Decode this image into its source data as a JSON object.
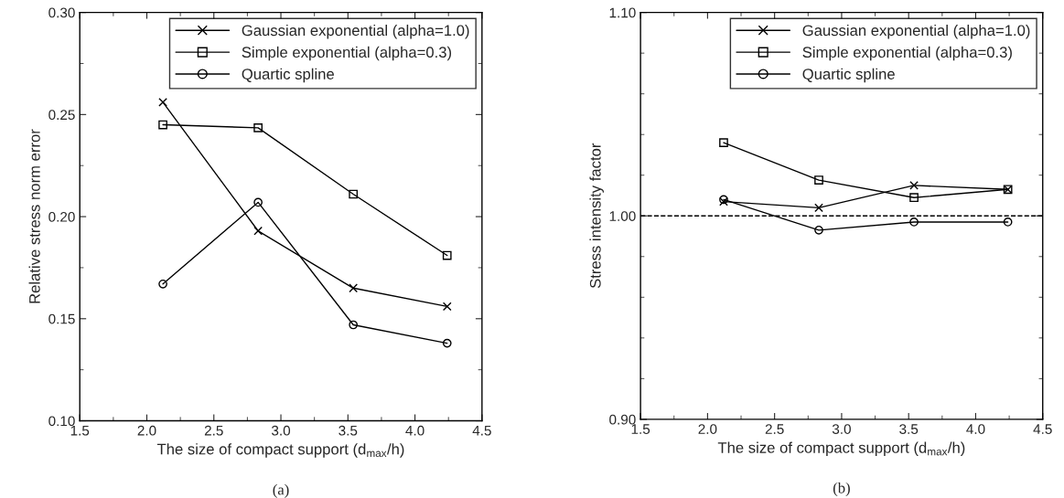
{
  "chart_data": [
    {
      "type": "line",
      "x": [
        2.12,
        2.83,
        3.54,
        4.24
      ],
      "xlabel": "The size of compact support (d$_{max}$/h)",
      "ylabel": "Relative stress norm error",
      "xlim": [
        1.5,
        4.5
      ],
      "xticks": [
        1.5,
        {
          "value": 2,
          "label": "2.0"
        },
        2.5,
        {
          "value": 3,
          "label": "3.0"
        },
        3.5,
        {
          "value": 4,
          "label": "4.0"
        },
        4.5
      ],
      "ylim": [
        0.1,
        0.3
      ],
      "yticks": [
        {
          "value": 0.1,
          "label": "0.10"
        },
        {
          "value": 0.15,
          "label": "0.15"
        },
        {
          "value": 0.2,
          "label": "0.20"
        },
        {
          "value": 0.25,
          "label": "0.25"
        },
        {
          "value": 0.3,
          "label": "0.30"
        }
      ],
      "legend": "top right",
      "grid": false,
      "annotations": [
        "(a)"
      ],
      "series": [
        {
          "name": "Gaussian exponential (alpha=1.0)",
          "color": "#000000",
          "marker": "cross",
          "values": [
            0.256,
            0.193,
            0.165,
            0.156
          ]
        },
        {
          "name": "Simple exponential (alpha=0.3)",
          "color": "#000000",
          "marker": "square",
          "values": [
            0.245,
            0.2435,
            0.211,
            0.181
          ]
        },
        {
          "name": "Quartic spline",
          "color": "#000000",
          "marker": "circle",
          "values": [
            0.167,
            0.207,
            0.147,
            0.138
          ]
        }
      ]
    },
    {
      "type": "line",
      "x": [
        2.12,
        2.83,
        3.54,
        4.24
      ],
      "xlabel": "The size of compact support (d$_{max}$/h)",
      "ylabel": "Stress intensity factor",
      "xlim": [
        1.5,
        4.5
      ],
      "xticks": [
        1.5,
        {
          "value": 2,
          "label": "2.0"
        },
        2.5,
        {
          "value": 3,
          "label": "3.0"
        },
        3.5,
        {
          "value": 4,
          "label": "4.0"
        },
        4.5
      ],
      "ylim": [
        0.9,
        1.1
      ],
      "yticks": [
        {
          "value": 0.9,
          "label": "0.90"
        },
        {
          "value": 1.0,
          "label": "1.00"
        },
        {
          "value": 1.1,
          "label": "1.10"
        }
      ],
      "legend": "top right",
      "grid": false,
      "annotations": [
        "(b)"
      ],
      "ref_lines": [
        {
          "axis": "y",
          "value": 1.0,
          "color": "#000000",
          "line_style": "dashed"
        }
      ],
      "series": [
        {
          "name": "Gaussian exponential (alpha=1.0)",
          "color": "#000000",
          "marker": "cross",
          "values": [
            1.007,
            1.004,
            1.015,
            1.013
          ]
        },
        {
          "name": "Simple exponential (alpha=0.3)",
          "color": "#000000",
          "marker": "square",
          "values": [
            1.036,
            1.0176,
            1.009,
            1.013
          ]
        },
        {
          "name": "Quartic spline",
          "color": "#000000",
          "marker": "circle",
          "values": [
            1.008,
            0.993,
            0.997,
            0.997
          ]
        }
      ]
    }
  ]
}
